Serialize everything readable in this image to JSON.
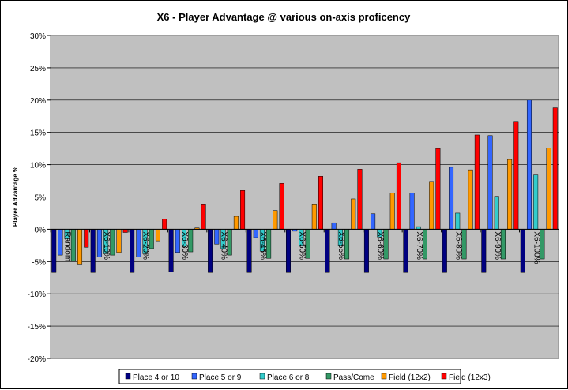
{
  "chart_data": {
    "type": "bar",
    "title": "X6 - Player Advantage @ various on-axis proficency",
    "ylabel": "Player Advantage %",
    "xlabel": "",
    "ylim": [
      -20,
      30
    ],
    "yticks": [
      "-20%",
      "-15%",
      "-10%",
      "-5%",
      "0%",
      "5%",
      "10%",
      "15%",
      "20%",
      "25%",
      "30%"
    ],
    "grid": true,
    "legend_position": "bottom",
    "categories": [
      "Random",
      "X6-10%",
      "X6-20%",
      "X6-30%",
      "X6-40%",
      "X6-45%",
      "X6-50%",
      "X6-55%",
      "X6-60%",
      "X6-70%",
      "X6-80%",
      "X6-90%",
      "X6-100%"
    ],
    "series": [
      {
        "name": "Place 4 or 10",
        "color": "#000080",
        "values": [
          -6.7,
          -6.7,
          -6.7,
          -6.6,
          -6.7,
          -6.7,
          -6.7,
          -6.7,
          -6.7,
          -6.7,
          -6.7,
          -6.7,
          -6.7
        ]
      },
      {
        "name": "Place 5 or 9",
        "color": "#3366ff",
        "values": [
          -4.0,
          -4.3,
          -4.3,
          -3.6,
          -2.3,
          -1.3,
          -0.3,
          1.0,
          2.4,
          5.6,
          9.6,
          14.5,
          20.0
        ]
      },
      {
        "name": "Place 6 or 8",
        "color": "#33cccc",
        "values": [
          -1.5,
          -3.8,
          -3.8,
          -2.7,
          -3.0,
          -3.4,
          -2.5,
          -2.5,
          -1.2,
          0.4,
          2.5,
          5.1,
          8.4
        ]
      },
      {
        "name": "Pass/Come",
        "color": "#339966",
        "values": [
          -5.0,
          -4.0,
          -3.0,
          -3.5,
          -4.0,
          -4.5,
          -4.5,
          -4.6,
          -4.6,
          -4.6,
          -4.6,
          -4.6,
          -4.6
        ]
      },
      {
        "name": "Field (12x2)",
        "color": "#ff9900",
        "values": [
          -5.5,
          -3.6,
          -1.8,
          0.2,
          2.0,
          2.9,
          3.8,
          4.7,
          5.6,
          7.4,
          9.2,
          10.8,
          12.6
        ]
      },
      {
        "name": "Field (12x3)",
        "color": "#ff0000",
        "values": [
          -2.8,
          -0.5,
          1.6,
          3.8,
          6.0,
          7.1,
          8.2,
          9.3,
          10.3,
          12.5,
          14.6,
          16.7,
          18.8
        ]
      }
    ]
  }
}
